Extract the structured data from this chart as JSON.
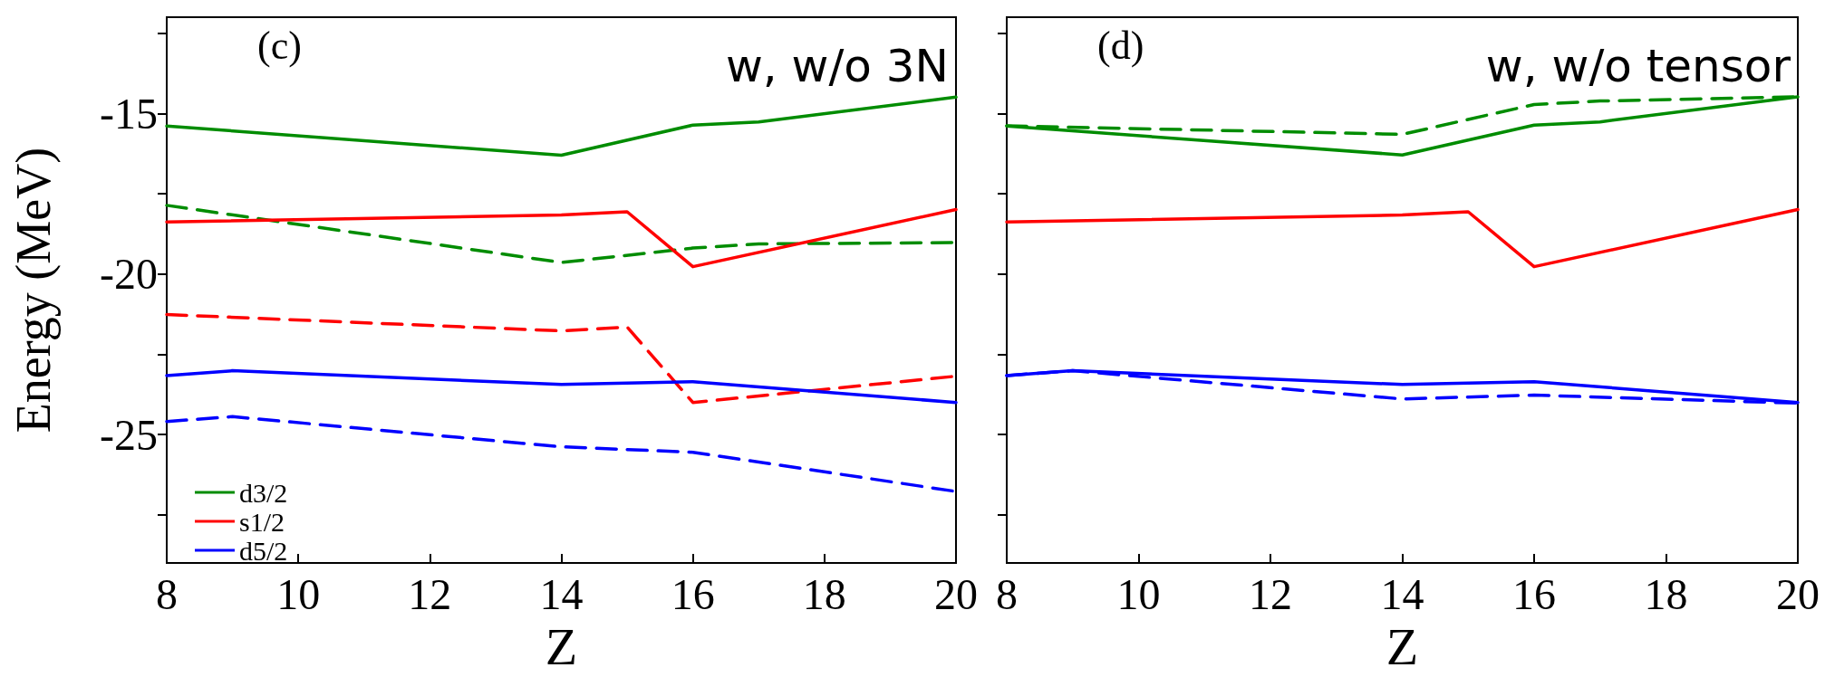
{
  "chart_data": [
    {
      "type": "line",
      "xlabel": "Z",
      "ylabel": "Energy (MeV)",
      "annotations": [
        "(c)",
        "w, w/o 3N"
      ],
      "xlim": [
        8,
        20
      ],
      "xticks": [
        8,
        10,
        12,
        14,
        16,
        18,
        20
      ],
      "ylim": [
        -29,
        -12
      ],
      "yticks": [
        {
          "value": -12.5,
          "label": null
        },
        -15,
        {
          "value": -17.5,
          "label": null
        },
        -20,
        {
          "value": -22.5,
          "label": null
        },
        -25,
        {
          "value": -27.5,
          "label": null
        }
      ],
      "grid": false,
      "legend": "bottom left",
      "marker": "none",
      "series": [
        {
          "name": "d3/2",
          "color": "#008c00",
          "line_style": "solid",
          "x": [
            8,
            14,
            16,
            17,
            20
          ],
          "values": [
            -15.39,
            -16.3,
            -15.36,
            -15.26,
            -14.49
          ]
        },
        {
          "name": "s1/2",
          "color": "#ff0000",
          "line_style": "solid",
          "x": [
            8,
            14,
            15,
            16,
            20
          ],
          "values": [
            -18.38,
            -18.16,
            -18.06,
            -19.77,
            -17.99
          ]
        },
        {
          "name": "d5/2",
          "color": "#0000ff",
          "line_style": "solid",
          "x": [
            8,
            9,
            14,
            16,
            20
          ],
          "values": [
            -23.16,
            -23.01,
            -23.44,
            -23.35,
            -24.0
          ]
        },
        {
          "color": "#008c00",
          "line_style": "dashed",
          "x": [
            8,
            14,
            16,
            17,
            20
          ],
          "values": [
            -17.86,
            -19.64,
            -19.19,
            -19.06,
            -19.02
          ]
        },
        {
          "color": "#ff0000",
          "line_style": "dashed",
          "x": [
            8,
            14,
            15,
            16,
            20
          ],
          "values": [
            -21.26,
            -21.77,
            -21.65,
            -24.0,
            -23.18
          ]
        },
        {
          "color": "#0000ff",
          "line_style": "dashed",
          "x": [
            8,
            9,
            14,
            16,
            20
          ],
          "values": [
            -24.59,
            -24.44,
            -25.38,
            -25.55,
            -26.77
          ]
        }
      ]
    },
    {
      "type": "line",
      "xlabel": "Z",
      "annotations": [
        "(d)",
        "w, w/o tensor"
      ],
      "xlim": [
        8,
        20
      ],
      "xticks": [
        8,
        10,
        12,
        14,
        16,
        18,
        20
      ],
      "ylim": [
        -29,
        -12
      ],
      "yticks": [
        {
          "value": -12.5,
          "label": null
        },
        -15,
        {
          "value": -17.5,
          "label": null
        },
        -20,
        {
          "value": -22.5,
          "label": null
        },
        -25,
        {
          "value": -27.5,
          "label": null
        }
      ],
      "tick_labels": "x",
      "grid": false,
      "marker": "none",
      "series": [
        {
          "color": "#008c00",
          "line_style": "solid",
          "x": [
            8,
            14,
            16,
            17,
            20
          ],
          "values": [
            -15.39,
            -16.29,
            -15.36,
            -15.26,
            -14.48
          ]
        },
        {
          "color": "#ff0000",
          "line_style": "solid",
          "x": [
            8,
            14,
            15,
            16,
            20
          ],
          "values": [
            -18.38,
            -18.16,
            -18.06,
            -19.77,
            -17.99
          ]
        },
        {
          "color": "#0000ff",
          "line_style": "solid",
          "x": [
            8,
            9,
            14,
            16,
            20
          ],
          "values": [
            -23.16,
            -23.01,
            -23.44,
            -23.35,
            -24.0
          ]
        },
        {
          "color": "#008c00",
          "line_style": "dashed",
          "x": [
            8,
            14,
            16,
            17,
            20
          ],
          "values": [
            -15.38,
            -15.65,
            -14.72,
            -14.61,
            -14.48
          ]
        },
        {
          "color": "#0000ff",
          "line_style": "dashed",
          "x": [
            8,
            9,
            14,
            16,
            20
          ],
          "values": [
            -23.16,
            -23.01,
            -23.89,
            -23.77,
            -24.02
          ]
        }
      ]
    }
  ]
}
